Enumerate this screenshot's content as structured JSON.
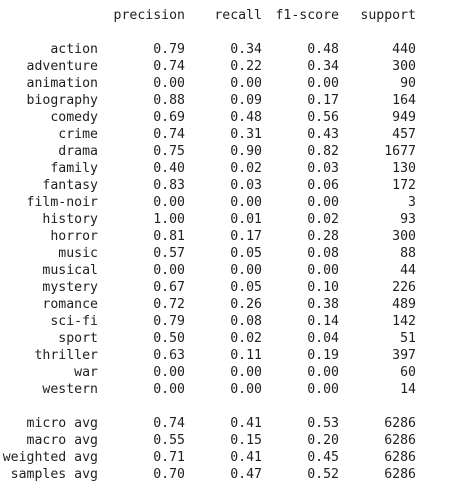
{
  "header": {
    "precision": "precision",
    "recall": "recall",
    "f1": "f1-score",
    "support": "support"
  },
  "rows": [
    {
      "label": "action",
      "precision": "0.79",
      "recall": "0.34",
      "f1": "0.48",
      "support": "440"
    },
    {
      "label": "adventure",
      "precision": "0.74",
      "recall": "0.22",
      "f1": "0.34",
      "support": "300"
    },
    {
      "label": "animation",
      "precision": "0.00",
      "recall": "0.00",
      "f1": "0.00",
      "support": "90"
    },
    {
      "label": "biography",
      "precision": "0.88",
      "recall": "0.09",
      "f1": "0.17",
      "support": "164"
    },
    {
      "label": "comedy",
      "precision": "0.69",
      "recall": "0.48",
      "f1": "0.56",
      "support": "949"
    },
    {
      "label": "crime",
      "precision": "0.74",
      "recall": "0.31",
      "f1": "0.43",
      "support": "457"
    },
    {
      "label": "drama",
      "precision": "0.75",
      "recall": "0.90",
      "f1": "0.82",
      "support": "1677"
    },
    {
      "label": "family",
      "precision": "0.40",
      "recall": "0.02",
      "f1": "0.03",
      "support": "130"
    },
    {
      "label": "fantasy",
      "precision": "0.83",
      "recall": "0.03",
      "f1": "0.06",
      "support": "172"
    },
    {
      "label": "film-noir",
      "precision": "0.00",
      "recall": "0.00",
      "f1": "0.00",
      "support": "3"
    },
    {
      "label": "history",
      "precision": "1.00",
      "recall": "0.01",
      "f1": "0.02",
      "support": "93"
    },
    {
      "label": "horror",
      "precision": "0.81",
      "recall": "0.17",
      "f1": "0.28",
      "support": "300"
    },
    {
      "label": "music",
      "precision": "0.57",
      "recall": "0.05",
      "f1": "0.08",
      "support": "88"
    },
    {
      "label": "musical",
      "precision": "0.00",
      "recall": "0.00",
      "f1": "0.00",
      "support": "44"
    },
    {
      "label": "mystery",
      "precision": "0.67",
      "recall": "0.05",
      "f1": "0.10",
      "support": "226"
    },
    {
      "label": "romance",
      "precision": "0.72",
      "recall": "0.26",
      "f1": "0.38",
      "support": "489"
    },
    {
      "label": "sci-fi",
      "precision": "0.79",
      "recall": "0.08",
      "f1": "0.14",
      "support": "142"
    },
    {
      "label": "sport",
      "precision": "0.50",
      "recall": "0.02",
      "f1": "0.04",
      "support": "51"
    },
    {
      "label": "thriller",
      "precision": "0.63",
      "recall": "0.11",
      "f1": "0.19",
      "support": "397"
    },
    {
      "label": "war",
      "precision": "0.00",
      "recall": "0.00",
      "f1": "0.00",
      "support": "60"
    },
    {
      "label": "western",
      "precision": "0.00",
      "recall": "0.00",
      "f1": "0.00",
      "support": "14"
    }
  ],
  "averages": [
    {
      "label": "micro avg",
      "precision": "0.74",
      "recall": "0.41",
      "f1": "0.53",
      "support": "6286"
    },
    {
      "label": "macro avg",
      "precision": "0.55",
      "recall": "0.15",
      "f1": "0.20",
      "support": "6286"
    },
    {
      "label": "weighted avg",
      "precision": "0.71",
      "recall": "0.41",
      "f1": "0.45",
      "support": "6286"
    },
    {
      "label": "samples avg",
      "precision": "0.70",
      "recall": "0.47",
      "f1": "0.52",
      "support": "6286"
    }
  ]
}
